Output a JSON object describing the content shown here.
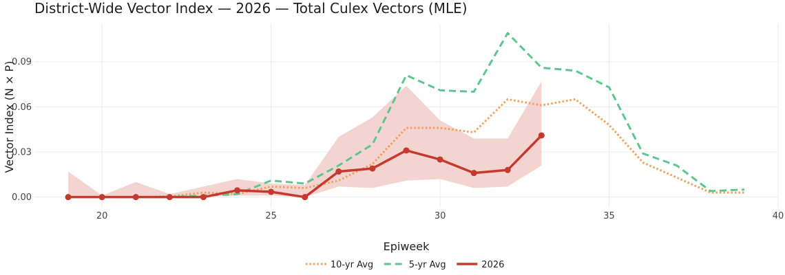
{
  "chart_data": {
    "type": "line",
    "title": "District-Wide Vector Index — 2026 — Total Culex Vectors (MLE)",
    "xlabel": "Epiweek",
    "ylabel": "Vector Index (N × P)",
    "xlim": [
      18,
      40
    ],
    "ylim": [
      -0.007,
      0.115
    ],
    "x_ticks": [
      20,
      25,
      30,
      35,
      40
    ],
    "x_tick_labels": [
      "20",
      "25",
      "30",
      "35",
      "40"
    ],
    "y_ticks": [
      0,
      0.03,
      0.06,
      0.09
    ],
    "y_tick_labels": [
      "0.00",
      "0.03",
      "0.06",
      "0.09"
    ],
    "grid": true,
    "legend_position": "bottom",
    "band": {
      "series": "2026",
      "color": "#f2cfcb",
      "x": [
        19,
        20,
        21,
        22,
        23,
        24,
        25,
        26,
        27,
        28,
        29,
        30,
        31,
        32,
        33
      ],
      "upper": [
        0.017,
        0.001,
        0.01,
        0.002,
        0.007,
        0.012,
        0.009,
        0.008,
        0.04,
        0.053,
        0.074,
        0.051,
        0.039,
        0.039,
        0.077
      ],
      "lower": [
        0.0,
        0.0,
        0.0,
        0.0,
        0.0,
        0.001,
        0.001,
        0.0,
        0.007,
        0.006,
        0.011,
        0.012,
        0.006,
        0.007,
        0.021
      ]
    },
    "series": [
      {
        "name": "10-yr Avg",
        "color": "#f0a05c",
        "style": "dotted",
        "x": [
          19,
          20,
          21,
          22,
          23,
          24,
          25,
          26,
          27,
          28,
          29,
          30,
          31,
          32,
          33,
          34,
          35,
          36,
          37,
          38,
          39
        ],
        "values": [
          0.0,
          0.0,
          0.0,
          0.0005,
          0.003,
          0.002,
          0.007,
          0.006,
          0.011,
          0.022,
          0.046,
          0.046,
          0.043,
          0.065,
          0.061,
          0.065,
          0.048,
          0.023,
          0.013,
          0.003,
          0.003
        ]
      },
      {
        "name": "5-yr Avg",
        "color": "#5fc58f",
        "style": "dashed",
        "x": [
          19,
          20,
          21,
          22,
          23,
          24,
          25,
          26,
          27,
          28,
          29,
          30,
          31,
          32,
          33,
          34,
          35,
          36,
          37,
          38,
          39
        ],
        "values": [
          0.0,
          0.0,
          0.0,
          0.0,
          0.001,
          0.002,
          0.011,
          0.009,
          0.021,
          0.035,
          0.081,
          0.071,
          0.07,
          0.109,
          0.086,
          0.084,
          0.073,
          0.029,
          0.021,
          0.004,
          0.005
        ]
      },
      {
        "name": "2026",
        "color": "#c43a2f",
        "style": "solid",
        "markers": true,
        "x": [
          19,
          20,
          21,
          22,
          23,
          24,
          25,
          26,
          27,
          28,
          29,
          30,
          31,
          32,
          33
        ],
        "values": [
          0.0,
          0.0,
          0.0,
          0.0,
          0.0,
          0.0045,
          0.0035,
          0.0,
          0.017,
          0.019,
          0.031,
          0.025,
          0.016,
          0.018,
          0.041
        ]
      }
    ]
  }
}
